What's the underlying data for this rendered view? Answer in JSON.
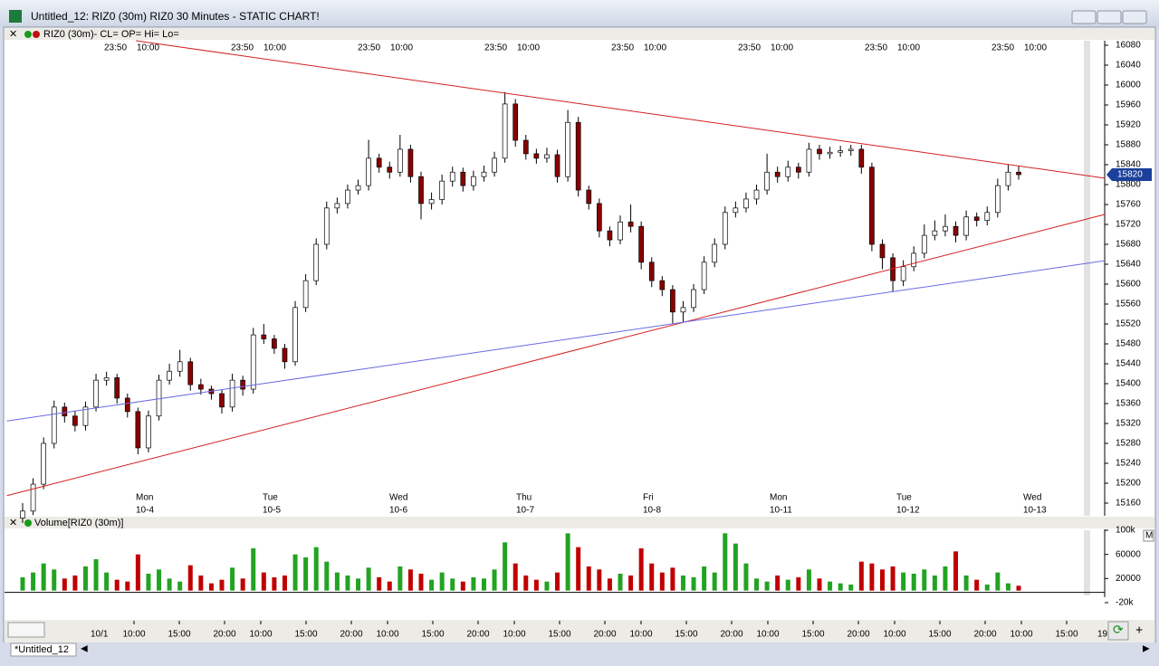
{
  "window": {
    "title": "Untitled_12: RIZ0 (30m) RIZ0 30 Minutes - STATIC CHART!",
    "tab": "*Untitled_12"
  },
  "chart_data": {
    "type": "candlestick",
    "header": "RIZ0 (30m)- CL= OP= Hi= Lo=",
    "up_color": "#ffffff",
    "down_color": "#8b0000",
    "candles": [
      [
        15130,
        15160,
        15120,
        15144
      ],
      [
        15144,
        15210,
        15136,
        15198
      ],
      [
        15198,
        15292,
        15188,
        15280
      ],
      [
        15280,
        15366,
        15270,
        15353
      ],
      [
        15353,
        15362,
        15322,
        15335
      ],
      [
        15335,
        15346,
        15304,
        15316
      ],
      [
        15316,
        15364,
        15306,
        15353
      ],
      [
        15353,
        15420,
        15344,
        15407
      ],
      [
        15407,
        15424,
        15396,
        15412
      ],
      [
        15412,
        15420,
        15360,
        15371
      ],
      [
        15371,
        15380,
        15332,
        15344
      ],
      [
        15344,
        15352,
        15258,
        15271
      ],
      [
        15271,
        15346,
        15262,
        15335
      ],
      [
        15335,
        15418,
        15326,
        15407
      ],
      [
        15407,
        15440,
        15398,
        15425
      ],
      [
        15425,
        15468,
        15414,
        15444
      ],
      [
        15444,
        15452,
        15386,
        15398
      ],
      [
        15398,
        15410,
        15378,
        15389
      ],
      [
        15389,
        15396,
        15368,
        15380
      ],
      [
        15380,
        15388,
        15340,
        15353
      ],
      [
        15353,
        15420,
        15344,
        15407
      ],
      [
        15407,
        15416,
        15376,
        15389
      ],
      [
        15389,
        15512,
        15380,
        15498
      ],
      [
        15498,
        15520,
        15480,
        15490
      ],
      [
        15490,
        15498,
        15460,
        15471
      ],
      [
        15471,
        15480,
        15430,
        15444
      ],
      [
        15444,
        15566,
        15436,
        15553
      ],
      [
        15553,
        15620,
        15544,
        15607
      ],
      [
        15607,
        15692,
        15598,
        15680
      ],
      [
        15680,
        15766,
        15670,
        15753
      ],
      [
        15753,
        15774,
        15742,
        15762
      ],
      [
        15762,
        15800,
        15752,
        15789
      ],
      [
        15789,
        15810,
        15780,
        15798
      ],
      [
        15798,
        15890,
        15788,
        15853
      ],
      [
        15853,
        15862,
        15824,
        15835
      ],
      [
        15835,
        15846,
        15812,
        15825
      ],
      [
        15825,
        15900,
        15816,
        15871
      ],
      [
        15871,
        15880,
        15804,
        15816
      ],
      [
        15816,
        15826,
        15730,
        15762
      ],
      [
        15762,
        15784,
        15750,
        15770
      ],
      [
        15770,
        15820,
        15760,
        15807
      ],
      [
        15807,
        15836,
        15796,
        15825
      ],
      [
        15825,
        15834,
        15786,
        15798
      ],
      [
        15798,
        15828,
        15788,
        15816
      ],
      [
        15816,
        15838,
        15806,
        15825
      ],
      [
        15825,
        15866,
        15816,
        15853
      ],
      [
        15853,
        15986,
        15844,
        15962
      ],
      [
        15962,
        15972,
        15876,
        15889
      ],
      [
        15889,
        15900,
        15850,
        15862
      ],
      [
        15862,
        15872,
        15842,
        15853
      ],
      [
        15853,
        15874,
        15844,
        15860
      ],
      [
        15860,
        15870,
        15804,
        15816
      ],
      [
        15816,
        15950,
        15806,
        15925
      ],
      [
        15925,
        15936,
        15776,
        15789
      ],
      [
        15789,
        15798,
        15750,
        15762
      ],
      [
        15762,
        15772,
        15694,
        15707
      ],
      [
        15707,
        15716,
        15676,
        15689
      ],
      [
        15689,
        15738,
        15680,
        15725
      ],
      [
        15725,
        15760,
        15704,
        15716
      ],
      [
        15716,
        15726,
        15630,
        15644
      ],
      [
        15644,
        15654,
        15594,
        15607
      ],
      [
        15607,
        15616,
        15576,
        15589
      ],
      [
        15589,
        15598,
        15520,
        15544
      ],
      [
        15544,
        15566,
        15524,
        15553
      ],
      [
        15553,
        15600,
        15544,
        15589
      ],
      [
        15589,
        15656,
        15580,
        15644
      ],
      [
        15644,
        15692,
        15634,
        15680
      ],
      [
        15680,
        15756,
        15670,
        15744
      ],
      [
        15744,
        15766,
        15734,
        15753
      ],
      [
        15753,
        15784,
        15744,
        15771
      ],
      [
        15771,
        15800,
        15760,
        15789
      ],
      [
        15789,
        15862,
        15780,
        15825
      ],
      [
        15825,
        15836,
        15804,
        15816
      ],
      [
        15816,
        15848,
        15806,
        15835
      ],
      [
        15835,
        15844,
        15812,
        15825
      ],
      [
        15825,
        15884,
        15816,
        15871
      ],
      [
        15871,
        15880,
        15850,
        15862
      ],
      [
        15862,
        15876,
        15852,
        15865
      ],
      [
        15865,
        15878,
        15856,
        15868
      ],
      [
        15868,
        15880,
        15858,
        15871
      ],
      [
        15871,
        15880,
        15822,
        15835
      ],
      [
        15835,
        15844,
        15666,
        15680
      ],
      [
        15680,
        15690,
        15630,
        15653
      ],
      [
        15653,
        15662,
        15584,
        15607
      ],
      [
        15607,
        15648,
        15596,
        15635
      ],
      [
        15635,
        15676,
        15626,
        15662
      ],
      [
        15662,
        15720,
        15652,
        15698
      ],
      [
        15698,
        15728,
        15688,
        15707
      ],
      [
        15707,
        15740,
        15696,
        15716
      ],
      [
        15716,
        15726,
        15684,
        15698
      ],
      [
        15698,
        15748,
        15688,
        15735
      ],
      [
        15735,
        15744,
        15716,
        15728
      ],
      [
        15728,
        15756,
        15718,
        15744
      ],
      [
        15744,
        15812,
        15734,
        15798
      ],
      [
        15798,
        15840,
        15788,
        15825
      ],
      [
        15825,
        15838,
        15810,
        15820
      ]
    ],
    "ylim": [
      15140,
      16100
    ],
    "yticks": [
      16080,
      16040,
      16000,
      15960,
      15920,
      15880,
      15840,
      15800,
      15760,
      15720,
      15680,
      15640,
      15600,
      15560,
      15520,
      15480,
      15440,
      15400,
      15360,
      15320,
      15280,
      15240,
      15200,
      15160
    ],
    "trendlines": [
      {
        "color": "#d42020",
        "from": [
          10.8,
          16089
        ],
        "to": [
          103.2,
          15813
        ]
      },
      {
        "color": "#d42020",
        "from": [
          -1.5,
          15175
        ],
        "to": [
          103.2,
          15740
        ]
      },
      {
        "color": "#6a6ae0",
        "from": [
          -1.5,
          15325
        ],
        "to": [
          103.2,
          15647
        ]
      }
    ],
    "top_time_labels": [
      "23:50",
      "10:00"
    ],
    "days": [
      {
        "day": "Mon",
        "date": "10-4"
      },
      {
        "day": "Tue",
        "date": "10-5"
      },
      {
        "day": "Wed",
        "date": "10-6"
      },
      {
        "day": "Thu",
        "date": "10-7"
      },
      {
        "day": "Fri",
        "date": "10-8"
      },
      {
        "day": "Mon",
        "date": "10-11"
      },
      {
        "day": "Tue",
        "date": "10-12"
      },
      {
        "day": "Wed",
        "date": "10-13"
      }
    ],
    "time_axis": {
      "start": "10/1",
      "pattern": [
        "10:00",
        "15:00",
        "20:00"
      ],
      "end": "19"
    },
    "volume": {
      "title": "Volume[RIZ0 (30m)]",
      "menu": "M",
      "up_color": "#22a322",
      "down_color": "#c00000",
      "values": [
        22000,
        30000,
        45000,
        35000,
        20000,
        25000,
        40000,
        52000,
        30000,
        18000,
        15000,
        60000,
        28000,
        35000,
        20000,
        15000,
        42000,
        25000,
        12000,
        18000,
        38000,
        20000,
        70000,
        30000,
        22000,
        25000,
        60000,
        55000,
        72000,
        48000,
        30000,
        25000,
        20000,
        38000,
        22000,
        15000,
        40000,
        35000,
        28000,
        18000,
        30000,
        20000,
        15000,
        22000,
        20000,
        35000,
        80000,
        45000,
        25000,
        18000,
        15000,
        30000,
        95000,
        72000,
        40000,
        35000,
        20000,
        28000,
        25000,
        70000,
        45000,
        30000,
        38000,
        25000,
        22000,
        40000,
        30000,
        95000,
        78000,
        45000,
        20000,
        15000,
        25000,
        18000,
        22000,
        35000,
        20000,
        15000,
        12000,
        10000,
        48000,
        45000,
        35000,
        40000,
        30000,
        28000,
        35000,
        25000,
        40000,
        65000,
        25000,
        18000,
        10000,
        30000,
        12000,
        8000
      ],
      "ylim": [
        -30000,
        104000
      ],
      "yticks": [
        {
          "value": 100000,
          "label": "100k"
        },
        60000,
        20000,
        {
          "value": -20000,
          "label": "-20k"
        }
      ]
    }
  }
}
